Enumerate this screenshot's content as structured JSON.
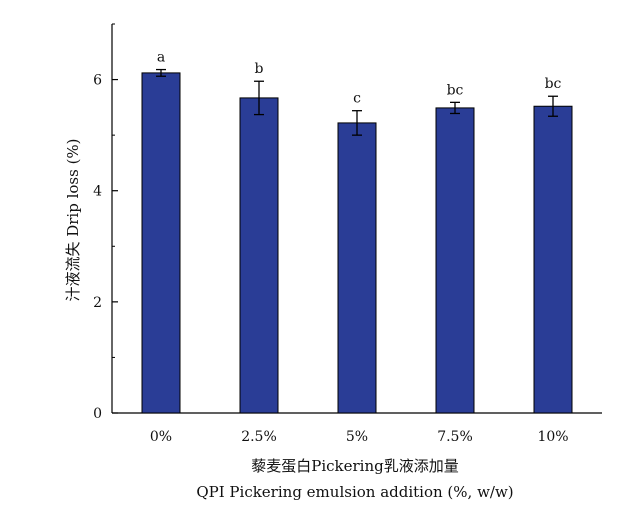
{
  "chart_data": {
    "type": "bar",
    "categories": [
      "0%",
      "2.5%",
      "5%",
      "7.5%",
      "10%"
    ],
    "values": [
      6.12,
      5.67,
      5.22,
      5.49,
      5.52
    ],
    "errors": [
      0.06,
      0.3,
      0.22,
      0.1,
      0.18
    ],
    "significance_labels": [
      "a",
      "b",
      "c",
      "bc",
      "bc"
    ],
    "xlabel_line1": "藜麦蛋白Pickering乳液添加量",
    "xlabel_line2": "QPI Pickering emulsion addition (%, w/w)",
    "ylabel": "汁液流失 Drip loss (%)",
    "ylim": [
      0,
      7
    ],
    "yticks": [
      0,
      2,
      4,
      6
    ],
    "bar_color": "#2a3d96",
    "grid": false,
    "legend": "none"
  }
}
